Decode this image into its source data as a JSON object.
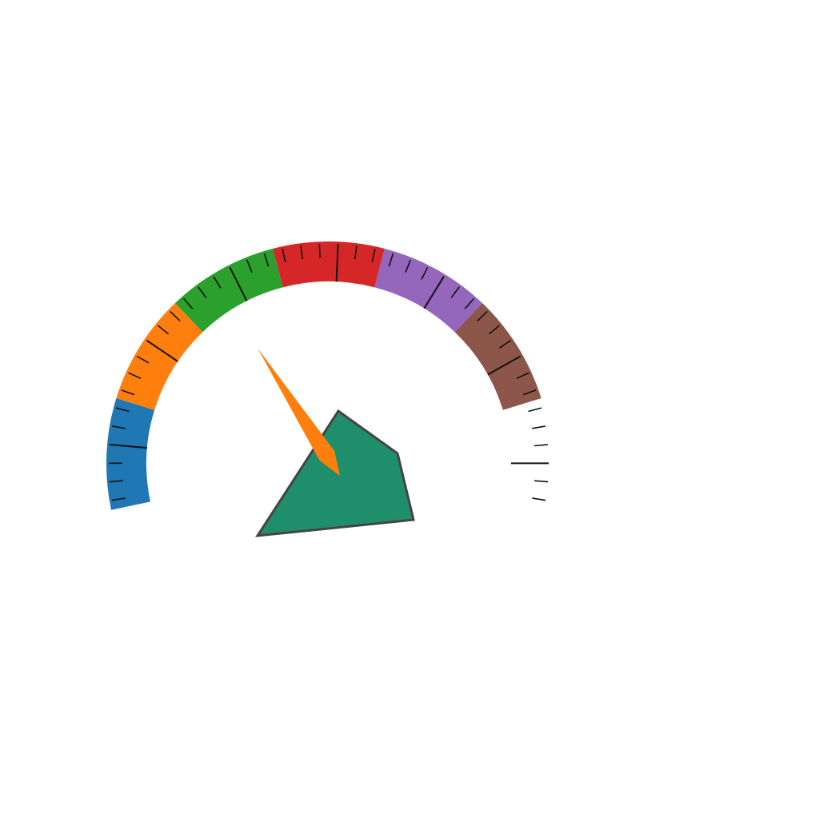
{
  "gauge": {
    "band_colors": [
      "#1f77b4",
      "#ff7f0e",
      "#2ca02c",
      "#d62728",
      "#9467bd",
      "#8c564b"
    ],
    "band_count": 6,
    "empty_band_count": 1,
    "minor_ticks_per_band": 6,
    "needle_value_fraction": 0.29,
    "needle_color": "#ff7f0e"
  },
  "hub": {
    "color": "#1f8e6b",
    "border_color": "#444444"
  }
}
